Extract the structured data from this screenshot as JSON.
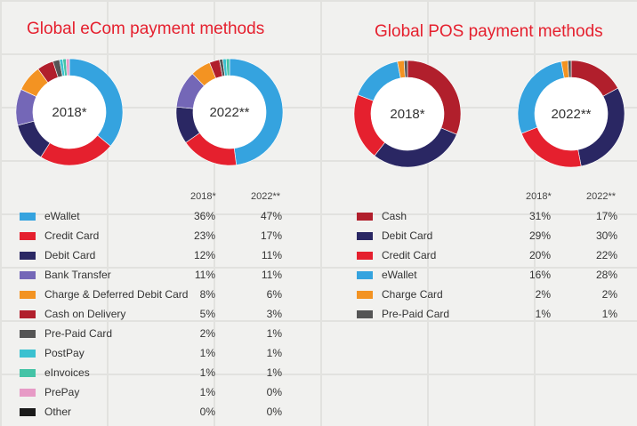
{
  "ecom": {
    "title": "Global eCom payment methods",
    "col1": "2018*",
    "col2": "2022**",
    "rows": [
      {
        "label": "eWallet",
        "color": "#35a3df",
        "v2018": "36%",
        "v2022": "47%"
      },
      {
        "label": "Credit Card",
        "color": "#e5202e",
        "v2018": "23%",
        "v2022": "17%"
      },
      {
        "label": "Debit Card",
        "color": "#2a2763",
        "v2018": "12%",
        "v2022": "11%"
      },
      {
        "label": "Bank Transfer",
        "color": "#7467b7",
        "v2018": "11%",
        "v2022": "11%"
      },
      {
        "label": "Charge & Deferred Debit Card",
        "color": "#f39322",
        "v2018": "8%",
        "v2022": "6%"
      },
      {
        "label": "Cash on Delivery",
        "color": "#b11f2c",
        "v2018": "5%",
        "v2022": "3%"
      },
      {
        "label": "Pre-Paid Card",
        "color": "#555555",
        "v2018": "2%",
        "v2022": "1%"
      },
      {
        "label": "PostPay",
        "color": "#3bc1d0",
        "v2018": "1%",
        "v2022": "1%"
      },
      {
        "label": "eInvoices",
        "color": "#44c3a6",
        "v2018": "1%",
        "v2022": "1%"
      },
      {
        "label": "PrePay",
        "color": "#e79ac6",
        "v2018": "1%",
        "v2022": "0%"
      },
      {
        "label": "Other",
        "color": "#1a1a1a",
        "v2018": "0%",
        "v2022": "0%"
      }
    ]
  },
  "pos": {
    "title": "Global POS payment methods",
    "col1": "2018*",
    "col2": "2022**",
    "rows": [
      {
        "label": "Cash",
        "color": "#b11f2c",
        "v2018": "31%",
        "v2022": "17%"
      },
      {
        "label": "Debit Card",
        "color": "#2a2763",
        "v2018": "29%",
        "v2022": "30%"
      },
      {
        "label": "Credit Card",
        "color": "#e5202e",
        "v2018": "20%",
        "v2022": "22%"
      },
      {
        "label": "eWallet",
        "color": "#35a3df",
        "v2018": "16%",
        "v2022": "28%"
      },
      {
        "label": "Charge Card",
        "color": "#f39322",
        "v2018": "2%",
        "v2022": "2%"
      },
      {
        "label": "Pre-Paid Card",
        "color": "#555555",
        "v2018": "1%",
        "v2022": "1%"
      }
    ]
  },
  "chart_data": [
    {
      "type": "pie",
      "title": "Global eCom payment methods",
      "label": "2018*",
      "categories": [
        "eWallet",
        "Credit Card",
        "Debit Card",
        "Bank Transfer",
        "Charge & Deferred Debit Card",
        "Cash on Delivery",
        "Pre-Paid Card",
        "PostPay",
        "eInvoices",
        "PrePay",
        "Other"
      ],
      "values": [
        36,
        23,
        12,
        11,
        8,
        5,
        2,
        1,
        1,
        1,
        0
      ]
    },
    {
      "type": "pie",
      "title": "Global eCom payment methods",
      "label": "2022**",
      "categories": [
        "eWallet",
        "Credit Card",
        "Debit Card",
        "Bank Transfer",
        "Charge & Deferred Debit Card",
        "Cash on Delivery",
        "Pre-Paid Card",
        "PostPay",
        "eInvoices",
        "PrePay",
        "Other"
      ],
      "values": [
        47,
        17,
        11,
        11,
        6,
        3,
        1,
        1,
        1,
        0,
        0
      ]
    },
    {
      "type": "pie",
      "title": "Global POS payment methods",
      "label": "2018*",
      "categories": [
        "Cash",
        "Debit Card",
        "Credit Card",
        "eWallet",
        "Charge Card",
        "Pre-Paid Card"
      ],
      "values": [
        31,
        29,
        20,
        16,
        2,
        1
      ]
    },
    {
      "type": "pie",
      "title": "Global POS payment methods",
      "label": "2022**",
      "categories": [
        "Cash",
        "Debit Card",
        "Credit Card",
        "eWallet",
        "Charge Card",
        "Pre-Paid Card"
      ],
      "values": [
        17,
        30,
        22,
        28,
        2,
        1
      ]
    }
  ]
}
